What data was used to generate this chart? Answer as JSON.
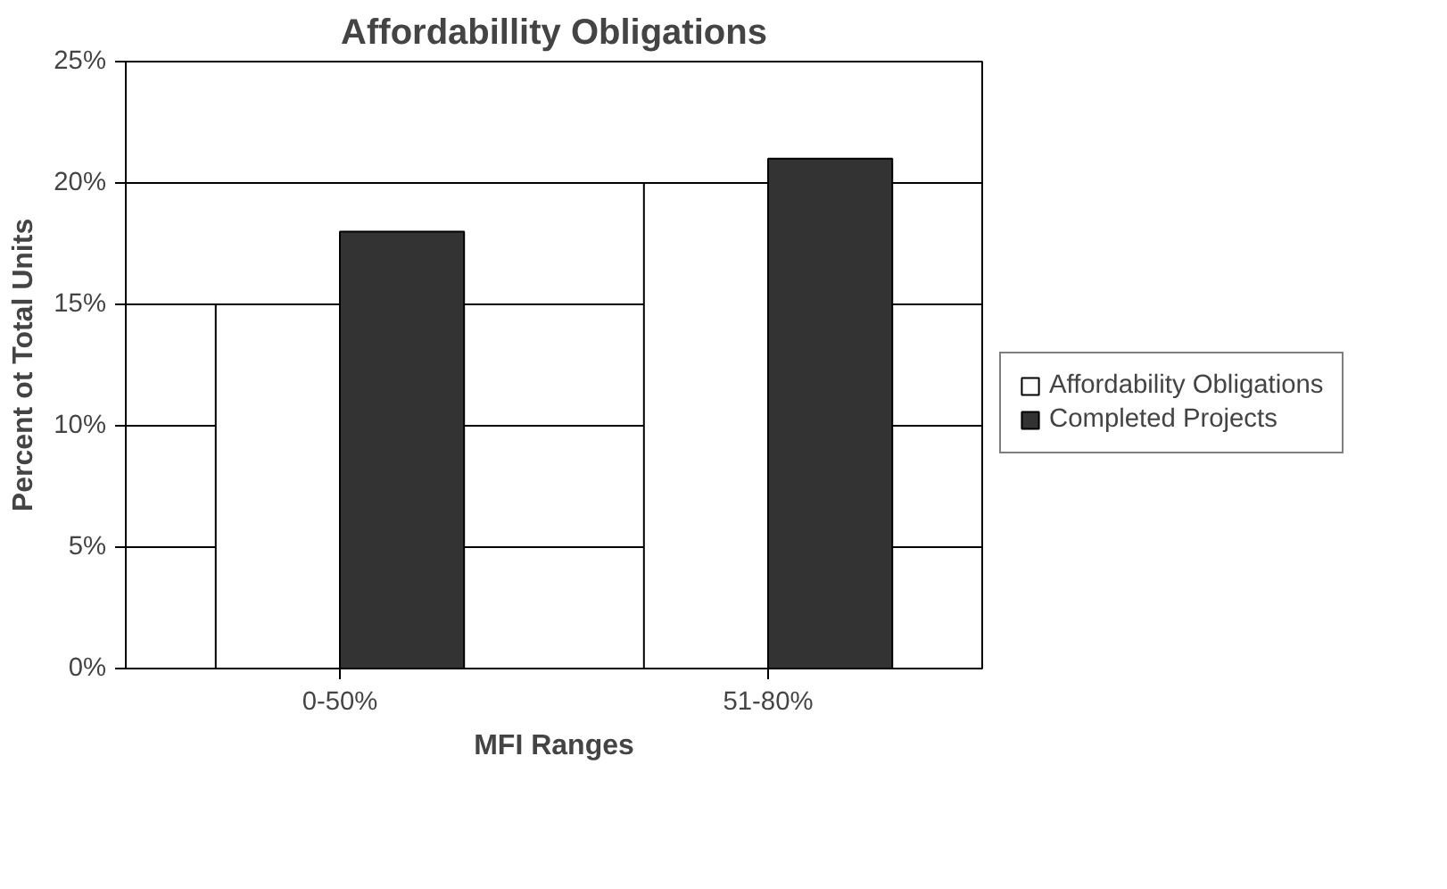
{
  "chart_data": {
    "type": "bar",
    "title": "Affordabillity Obligations",
    "xlabel": "MFI Ranges",
    "ylabel": "Percent ot Total Units",
    "categories": [
      "0-50%",
      "51-80%"
    ],
    "series": [
      {
        "name": "Affordability Obligations",
        "color": "#ffffff",
        "values": [
          15,
          20
        ]
      },
      {
        "name": "Completed Projects",
        "color": "#333333",
        "values": [
          18,
          21
        ]
      }
    ],
    "ylim": [
      0,
      25
    ],
    "yticks": [
      {
        "value": 0,
        "label": "0%"
      },
      {
        "value": 5,
        "label": "5%"
      },
      {
        "value": 10,
        "label": "10%"
      },
      {
        "value": 15,
        "label": "15%"
      },
      {
        "value": 20,
        "label": "20%"
      },
      {
        "value": 25,
        "label": "25%"
      }
    ],
    "grid": "y",
    "legend": "right"
  }
}
